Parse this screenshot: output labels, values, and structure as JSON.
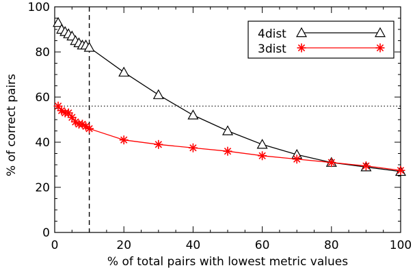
{
  "chart_data": {
    "type": "line",
    "xlabel": "% of total pairs with lowest metric values",
    "ylabel": "% of correct pairs",
    "xlim": [
      0,
      100
    ],
    "ylim": [
      0,
      100
    ],
    "x_ticks": [
      "0",
      "20",
      "40",
      "60",
      "80",
      "100"
    ],
    "y_ticks": [
      "0",
      "20",
      "40",
      "60",
      "80",
      "100"
    ],
    "grid": false,
    "legend_position": "top-right",
    "reference_lines": [
      {
        "orientation": "vertical",
        "value": 10,
        "style": "dashed"
      },
      {
        "orientation": "horizontal",
        "value": 56,
        "style": "dotted"
      }
    ],
    "series": [
      {
        "name": "4dist",
        "color": "#000000",
        "marker": "triangle",
        "x": [
          1,
          2,
          3,
          4,
          5,
          6,
          7,
          8,
          9,
          10,
          20,
          30,
          40,
          50,
          60,
          70,
          80,
          90,
          100
        ],
        "y": [
          93,
          90,
          89,
          88,
          87,
          85,
          84,
          83,
          83,
          82,
          71,
          61,
          52,
          45,
          39,
          34.5,
          31,
          29,
          27
        ]
      },
      {
        "name": "3dist",
        "color": "#ff0000",
        "marker": "asterisk",
        "x": [
          1,
          2,
          3,
          4,
          5,
          6,
          7,
          8,
          9,
          10,
          20,
          30,
          40,
          50,
          60,
          70,
          80,
          90,
          100
        ],
        "y": [
          56,
          54,
          53,
          53,
          51,
          49,
          48,
          48,
          47,
          46,
          41,
          39,
          37.5,
          36,
          34,
          32.5,
          31,
          29.5,
          27.5
        ]
      }
    ]
  }
}
